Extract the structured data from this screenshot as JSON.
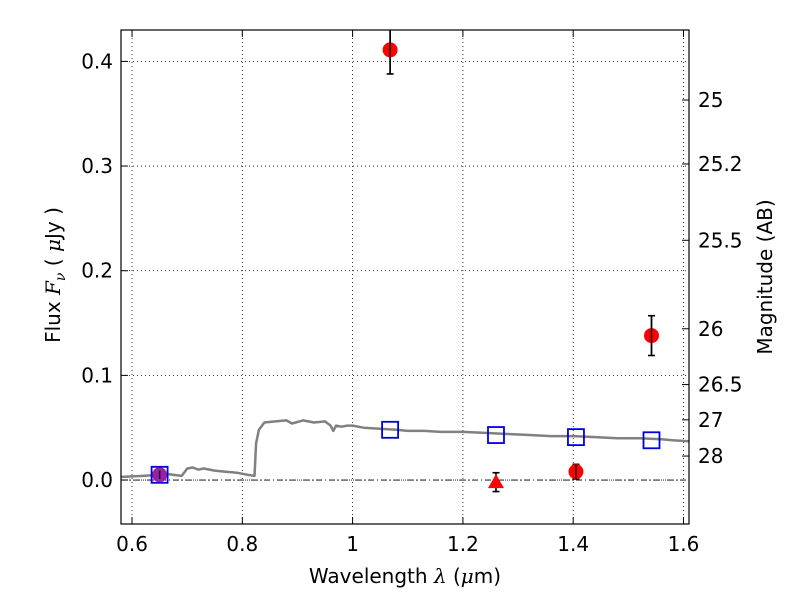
{
  "chart_data": {
    "type": "scatter",
    "xlabel": {
      "prefix": "Wavelength ",
      "symbol": "λ",
      "open": " (",
      "unit_symbol": "μ",
      "unit": "m)"
    },
    "ylabel": {
      "prefix": "Flux ",
      "symbol": "F",
      "subscript": "ν",
      "open": " ( ",
      "unit_symbol": "μ",
      "unit": "Jy )"
    },
    "y2label": "Magnitude (AB)",
    "xlim": [
      0.58,
      1.61
    ],
    "ylim": [
      -0.042,
      0.43
    ],
    "xticks": [
      0.6,
      0.8,
      1.0,
      1.2,
      1.4,
      1.6
    ],
    "xtick_labels": [
      "0.6",
      "0.8",
      "1",
      "1.2",
      "1.4",
      "1.6"
    ],
    "yticks": [
      0.0,
      0.1,
      0.2,
      0.3,
      0.4
    ],
    "ytick_labels": [
      "0.0",
      "0.1",
      "0.2",
      "0.3",
      "0.4"
    ],
    "right_axis": {
      "scale": "AB magnitude",
      "ticks": [
        25,
        25.2,
        25.5,
        26,
        26.5,
        27,
        28
      ],
      "tick_labels": [
        "25",
        "25.2",
        "25.5",
        "26",
        "26.5",
        "27",
        "28"
      ]
    },
    "grid": true,
    "zero_line": true,
    "series": [
      {
        "marker": "circle",
        "color": "#ff0000",
        "points": [
          {
            "x": 1.068,
            "y": 0.411,
            "err": 0.023
          },
          {
            "x": 1.405,
            "y": 0.008,
            "err": 0.007
          },
          {
            "x": 1.542,
            "y": 0.138,
            "err": 0.019
          }
        ]
      },
      {
        "marker": "circle",
        "color": "#9b1fa8",
        "points": [
          {
            "x": 0.65,
            "y": 0.005,
            "err": 0.004
          }
        ]
      },
      {
        "marker": "triangle",
        "color": "#ff0000",
        "points": [
          {
            "x": 1.26,
            "y": -0.002,
            "err": 0.009
          }
        ]
      },
      {
        "marker": "open-square",
        "color": "#0000dd",
        "points": [
          {
            "x": 0.65,
            "y": 0.005
          },
          {
            "x": 1.068,
            "y": 0.048
          },
          {
            "x": 1.26,
            "y": 0.043
          },
          {
            "x": 1.405,
            "y": 0.041
          },
          {
            "x": 1.542,
            "y": 0.038
          }
        ]
      }
    ],
    "model_sed": {
      "color": "#808080",
      "points": [
        [
          0.58,
          0.003
        ],
        [
          0.62,
          0.004
        ],
        [
          0.65,
          0.005
        ],
        [
          0.66,
          0.006
        ],
        [
          0.69,
          0.004
        ],
        [
          0.7,
          0.011
        ],
        [
          0.71,
          0.012
        ],
        [
          0.72,
          0.01
        ],
        [
          0.73,
          0.011
        ],
        [
          0.75,
          0.009
        ],
        [
          0.77,
          0.008
        ],
        [
          0.79,
          0.007
        ],
        [
          0.81,
          0.005
        ],
        [
          0.822,
          0.004
        ],
        [
          0.825,
          0.035
        ],
        [
          0.83,
          0.048
        ],
        [
          0.84,
          0.055
        ],
        [
          0.86,
          0.056
        ],
        [
          0.88,
          0.057
        ],
        [
          0.89,
          0.054
        ],
        [
          0.91,
          0.057
        ],
        [
          0.93,
          0.055
        ],
        [
          0.95,
          0.056
        ],
        [
          0.96,
          0.052
        ],
        [
          0.965,
          0.047
        ],
        [
          0.97,
          0.052
        ],
        [
          0.98,
          0.051
        ],
        [
          0.99,
          0.052
        ],
        [
          1.0,
          0.052
        ],
        [
          1.02,
          0.05
        ],
        [
          1.05,
          0.049
        ],
        [
          1.08,
          0.048
        ],
        [
          1.1,
          0.047
        ],
        [
          1.13,
          0.047
        ],
        [
          1.16,
          0.046
        ],
        [
          1.2,
          0.046
        ],
        [
          1.24,
          0.045
        ],
        [
          1.28,
          0.044
        ],
        [
          1.32,
          0.043
        ],
        [
          1.36,
          0.042
        ],
        [
          1.4,
          0.042
        ],
        [
          1.44,
          0.041
        ],
        [
          1.48,
          0.04
        ],
        [
          1.52,
          0.04
        ],
        [
          1.56,
          0.039
        ],
        [
          1.58,
          0.038
        ],
        [
          1.61,
          0.037
        ]
      ]
    }
  }
}
